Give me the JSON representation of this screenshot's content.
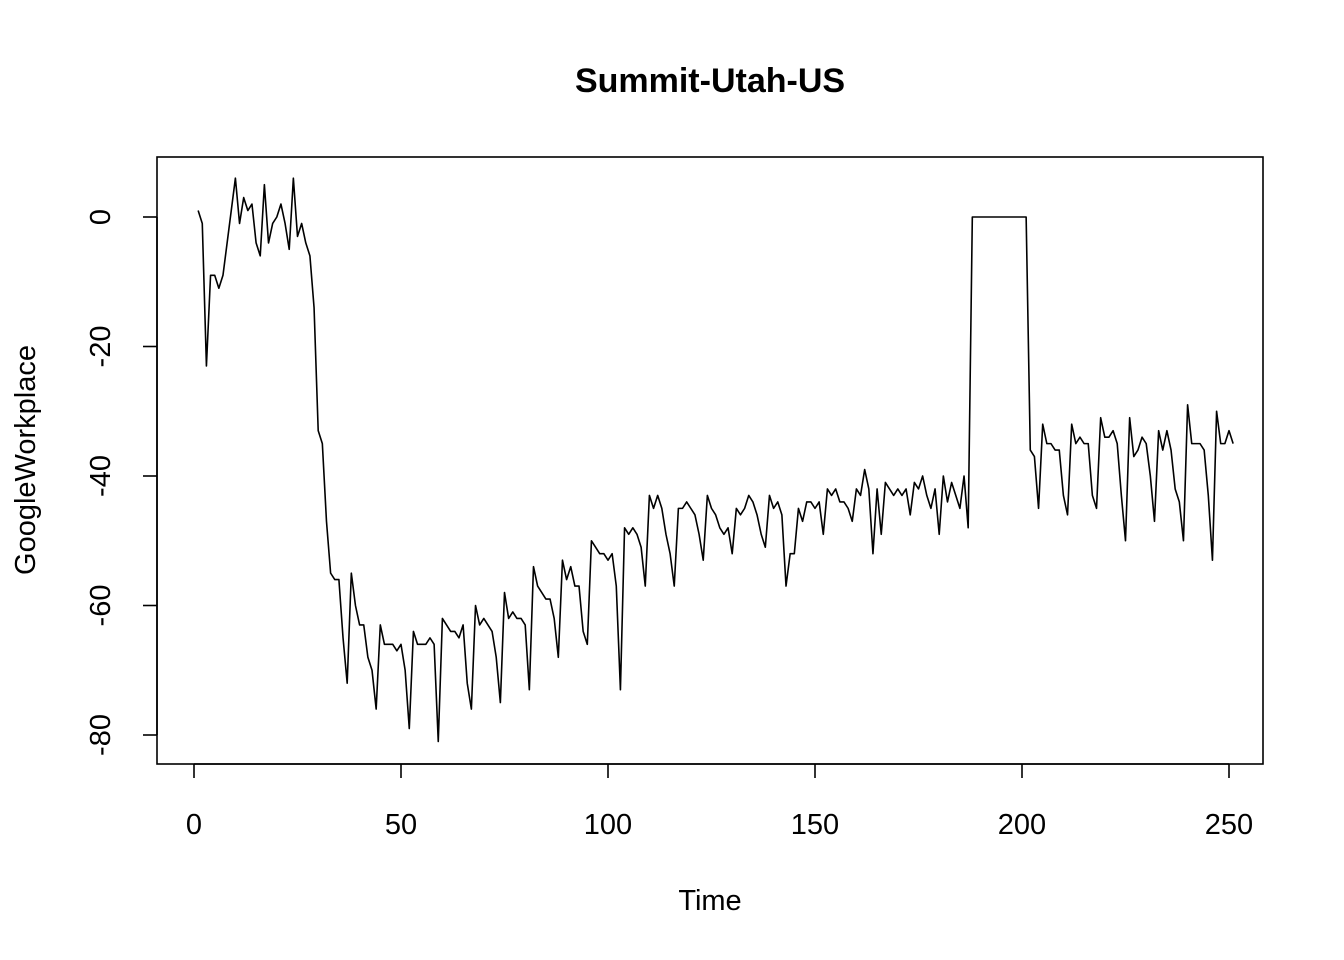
{
  "chart_data": {
    "type": "line",
    "title": "Summit-Utah-US",
    "xlabel": "Time",
    "ylabel": "GoogleWorkplace",
    "xlim": [
      1,
      248
    ],
    "ylim": [
      -81,
      6
    ],
    "x_ticks": [
      0,
      50,
      100,
      150,
      200,
      250
    ],
    "y_ticks": [
      0,
      -20,
      -40,
      -60,
      -80
    ],
    "grid": false,
    "legend": "none",
    "line_color": "#000000",
    "series": [
      {
        "x_start": 1,
        "x_step": 1,
        "values": [
          1,
          -1,
          -23,
          -9,
          -9,
          -11,
          -9,
          -4,
          1,
          6,
          -1,
          3,
          1,
          2,
          -4,
          -6,
          5,
          -4,
          -1,
          0,
          2,
          -1,
          -5,
          6,
          -3,
          -1,
          -4,
          -6,
          -14,
          -33,
          -35,
          -47,
          -55,
          -56,
          -56,
          -65,
          -72,
          -55,
          -60,
          -63,
          -63,
          -68,
          -70,
          -76,
          -63,
          -66,
          -66,
          -66,
          -67,
          -66,
          -70,
          -79,
          -64,
          -66,
          -66,
          -66,
          -65,
          -66,
          -81,
          -62,
          -63,
          -64,
          -64,
          -65,
          -63,
          -72,
          -76,
          -60,
          -63,
          -62,
          -63,
          -64,
          -68,
          -75,
          -58,
          -62,
          -61,
          -62,
          -62,
          -63,
          -73,
          -54,
          -57,
          -58,
          -59,
          -59,
          -62,
          -68,
          -53,
          -56,
          -54,
          -57,
          -57,
          -64,
          -66,
          -50,
          -51,
          -52,
          -52,
          -53,
          -52,
          -57,
          -73,
          -48,
          -49,
          -48,
          -49,
          -51,
          -57,
          -43,
          -45,
          -43,
          -45,
          -49,
          -52,
          -57,
          -45,
          -45,
          -44,
          -45,
          -46,
          -49,
          -53,
          -43,
          -45,
          -46,
          -48,
          -49,
          -48,
          -52,
          -45,
          -46,
          -45,
          -43,
          -44,
          -46,
          -49,
          -51,
          -43,
          -45,
          -44,
          -46,
          -57,
          -52,
          -52,
          -45,
          -47,
          -44,
          -44,
          -45,
          -44,
          -49,
          -42,
          -43,
          -42,
          -44,
          -44,
          -45,
          -47,
          -42,
          -43,
          -39,
          -42,
          -52,
          -42,
          -49,
          -41,
          -42,
          -43,
          -42,
          -43,
          -42,
          -46,
          -41,
          -42,
          -40,
          -43,
          -45,
          -42,
          -49,
          -40,
          -44,
          -41,
          -43,
          -45,
          -40,
          -48,
          0,
          0,
          0,
          0,
          0,
          0,
          0,
          0,
          0,
          0,
          0,
          0,
          0,
          0,
          -36,
          -37,
          -45,
          -32,
          -35,
          -35,
          -36,
          -36,
          -43,
          -46,
          -32,
          -35,
          -34,
          -35,
          -35,
          -43,
          -45,
          -31,
          -34,
          -34,
          -33,
          -35,
          -43,
          -50,
          -31,
          -37,
          -36,
          -34,
          -35,
          -40,
          -47,
          -33,
          -36,
          -33,
          -36,
          -42,
          -44,
          -50,
          -29,
          -35,
          -35,
          -35,
          -36,
          -43,
          -53,
          -30,
          -35,
          -35,
          -33,
          -35
        ]
      }
    ]
  }
}
